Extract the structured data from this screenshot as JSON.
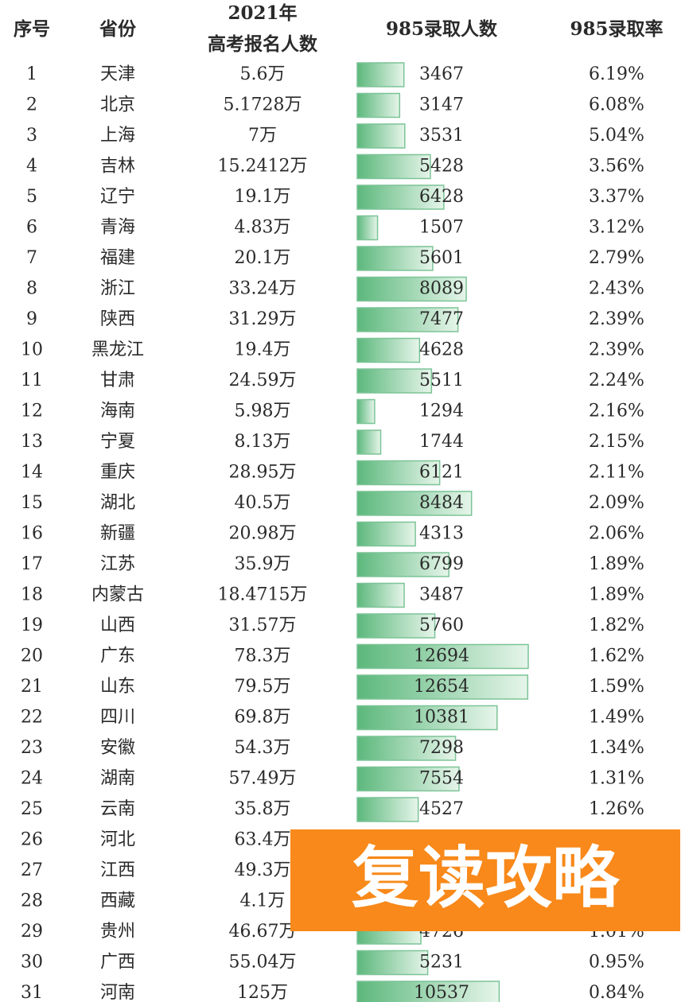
{
  "table": {
    "headers": [
      "序号",
      "省份",
      [
        "2021年",
        "高考报名人数"
      ],
      "985录取人数",
      "985录取率"
    ],
    "rows": [
      [
        1,
        "天津",
        "5.6万",
        3467,
        "6.19%"
      ],
      [
        2,
        "北京",
        "5.1728万",
        3147,
        "6.08%"
      ],
      [
        3,
        "上海",
        "7万",
        3531,
        "5.04%"
      ],
      [
        4,
        "吉林",
        "15.2412万",
        5428,
        "3.56%"
      ],
      [
        5,
        "辽宁",
        "19.1万",
        6428,
        "3.37%"
      ],
      [
        6,
        "青海",
        "4.83万",
        1507,
        "3.12%"
      ],
      [
        7,
        "福建",
        "20.1万",
        5601,
        "2.79%"
      ],
      [
        8,
        "浙江",
        "33.24万",
        8089,
        "2.43%"
      ],
      [
        9,
        "陕西",
        "31.29万",
        7477,
        "2.39%"
      ],
      [
        10,
        "黑龙江",
        "19.4万",
        4628,
        "2.39%"
      ],
      [
        11,
        "甘肃",
        "24.59万",
        5511,
        "2.24%"
      ],
      [
        12,
        "海南",
        "5.98万",
        1294,
        "2.16%"
      ],
      [
        13,
        "宁夏",
        "8.13万",
        1744,
        "2.15%"
      ],
      [
        14,
        "重庆",
        "28.95万",
        6121,
        "2.11%"
      ],
      [
        15,
        "湖北",
        "40.5万",
        8484,
        "2.09%"
      ],
      [
        16,
        "新疆",
        "20.98万",
        4313,
        "2.06%"
      ],
      [
        17,
        "江苏",
        "35.9万",
        6799,
        "1.89%"
      ],
      [
        18,
        "内蒙古",
        "18.4715万",
        3487,
        "1.89%"
      ],
      [
        19,
        "山西",
        "31.57万",
        5760,
        "1.82%"
      ],
      [
        20,
        "广东",
        "78.3万",
        12694,
        "1.62%"
      ],
      [
        21,
        "山东",
        "79.5万",
        12654,
        "1.59%"
      ],
      [
        22,
        "四川",
        "69.8万",
        10381,
        "1.49%"
      ],
      [
        23,
        "安徽",
        "54.3万",
        7298,
        "1.34%"
      ],
      [
        24,
        "湖南",
        "57.49万",
        7554,
        "1.31%"
      ],
      [
        25,
        "云南",
        "35.8万",
        4527,
        "1.26%"
      ],
      [
        26,
        "河北",
        "63.4万",
        null,
        null
      ],
      [
        27,
        "江西",
        "49.3万",
        null,
        null
      ],
      [
        28,
        "西藏",
        "4.1万",
        null,
        null
      ],
      [
        29,
        "贵州",
        "46.67万",
        4726,
        "1.01%"
      ],
      [
        30,
        "广西",
        "55.04万",
        5231,
        "0.95%"
      ],
      [
        31,
        "河南",
        "125万",
        10537,
        "0.84%"
      ]
    ]
  },
  "overlay": {
    "text": "复读攻略"
  }
}
